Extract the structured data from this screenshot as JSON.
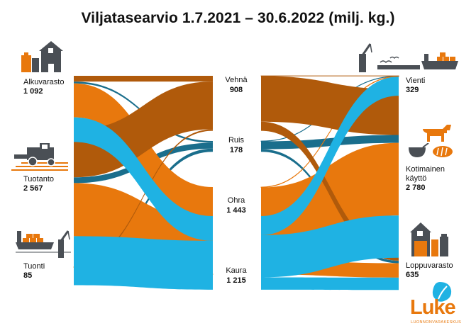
{
  "title": "Viljatasearvio 1.7.2021 – 30.6.2022 (milj. kg.)",
  "colors": {
    "vehna": "#b05a0b",
    "ruis": "#1a6e8c",
    "ohra": "#e8780d",
    "kaura": "#1fb2e3",
    "icon": "#4a4f55",
    "accent": "#e8780d"
  },
  "sources": [
    {
      "label": "Alkuvarasto",
      "value": "1 092"
    },
    {
      "label": "Tuotanto",
      "value": "2 567"
    },
    {
      "label": "Tuonti",
      "value": "85"
    }
  ],
  "grains": [
    {
      "label": "Vehnä",
      "value": "908"
    },
    {
      "label": "Ruis",
      "value": "178"
    },
    {
      "label": "Ohra",
      "value": "1 443"
    },
    {
      "label": "Kaura",
      "value": "1 215"
    }
  ],
  "uses": [
    {
      "label": "Vienti",
      "value": "329"
    },
    {
      "label": "Kotimainen käyttö",
      "value": "2 780"
    },
    {
      "label": "Loppuvarasto",
      "value": "635"
    }
  ],
  "logo": {
    "name": "Luke",
    "subtitle": "LUONNONVARAKESKUS"
  },
  "chart_data": {
    "type": "sankey",
    "unit": "milj. kg.",
    "nodes": [
      "Alkuvarasto",
      "Tuotanto",
      "Tuonti",
      "Vehnä",
      "Ruis",
      "Ohra",
      "Kaura",
      "Vienti",
      "Kotimainen käyttö",
      "Loppuvarasto"
    ],
    "links": [
      {
        "source": "Alkuvarasto",
        "target": "Vehnä",
        "value": 95
      },
      {
        "source": "Alkuvarasto",
        "target": "Ruis",
        "value": 30
      },
      {
        "source": "Alkuvarasto",
        "target": "Ohra",
        "value": 560
      },
      {
        "source": "Alkuvarasto",
        "target": "Kaura",
        "value": 407
      },
      {
        "source": "Tuotanto",
        "target": "Vehnä",
        "value": 787
      },
      {
        "source": "Tuotanto",
        "target": "Ruis",
        "value": 95
      },
      {
        "source": "Tuotanto",
        "target": "Ohra",
        "value": 877
      },
      {
        "source": "Tuotanto",
        "target": "Kaura",
        "value": 808
      },
      {
        "source": "Tuonti",
        "target": "Vehnä",
        "value": 26
      },
      {
        "source": "Tuonti",
        "target": "Ruis",
        "value": 53
      },
      {
        "source": "Tuonti",
        "target": "Ohra",
        "value": 6
      },
      {
        "source": "Vehnä",
        "target": "Vienti",
        "value": 3
      },
      {
        "source": "Vehnä",
        "target": "Kotimainen käyttö",
        "value": 755
      },
      {
        "source": "Vehnä",
        "target": "Loppuvarasto",
        "value": 150
      },
      {
        "source": "Ruis",
        "target": "Vienti",
        "value": 5
      },
      {
        "source": "Ruis",
        "target": "Kotimainen käyttö",
        "value": 130
      },
      {
        "source": "Ruis",
        "target": "Loppuvarasto",
        "value": 43
      },
      {
        "source": "Ohra",
        "target": "Vienti",
        "value": 6
      },
      {
        "source": "Ohra",
        "target": "Kotimainen käyttö",
        "value": 1199
      },
      {
        "source": "Ohra",
        "target": "Loppuvarasto",
        "value": 238
      },
      {
        "source": "Kaura",
        "target": "Vienti",
        "value": 315
      },
      {
        "source": "Kaura",
        "target": "Kotimainen käyttö",
        "value": 696
      },
      {
        "source": "Kaura",
        "target": "Loppuvarasto",
        "value": 204
      }
    ]
  }
}
